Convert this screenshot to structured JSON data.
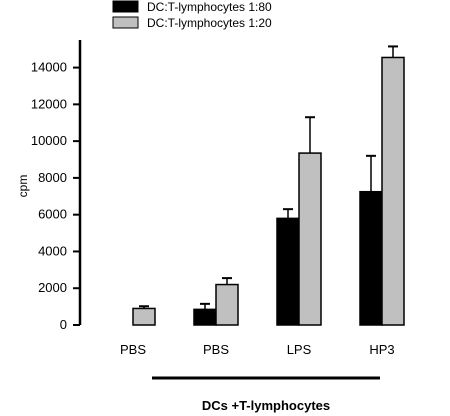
{
  "chart_data": {
    "type": "bar",
    "categories": [
      "PBS",
      "PBS",
      "LPS",
      "HP3"
    ],
    "series": [
      {
        "name": "DC:T-lymphocytes 1:80",
        "color": "#000000",
        "values": [
          0,
          850,
          5800,
          7250
        ],
        "errors": [
          0,
          300,
          500,
          1950
        ]
      },
      {
        "name": "DC:T-lymphocytes 1:20",
        "color": "#c0c0c0",
        "values": [
          900,
          2200,
          9350,
          14550
        ],
        "errors": [
          120,
          350,
          1950,
          600
        ]
      }
    ],
    "ylabel": "cpm",
    "ylim": [
      0,
      15500
    ],
    "yticks": [
      0,
      2000,
      4000,
      6000,
      8000,
      10000,
      12000,
      14000
    ],
    "group_label": "DCs +T-lymphocytes",
    "grid": false,
    "legend_position": "top-left"
  }
}
